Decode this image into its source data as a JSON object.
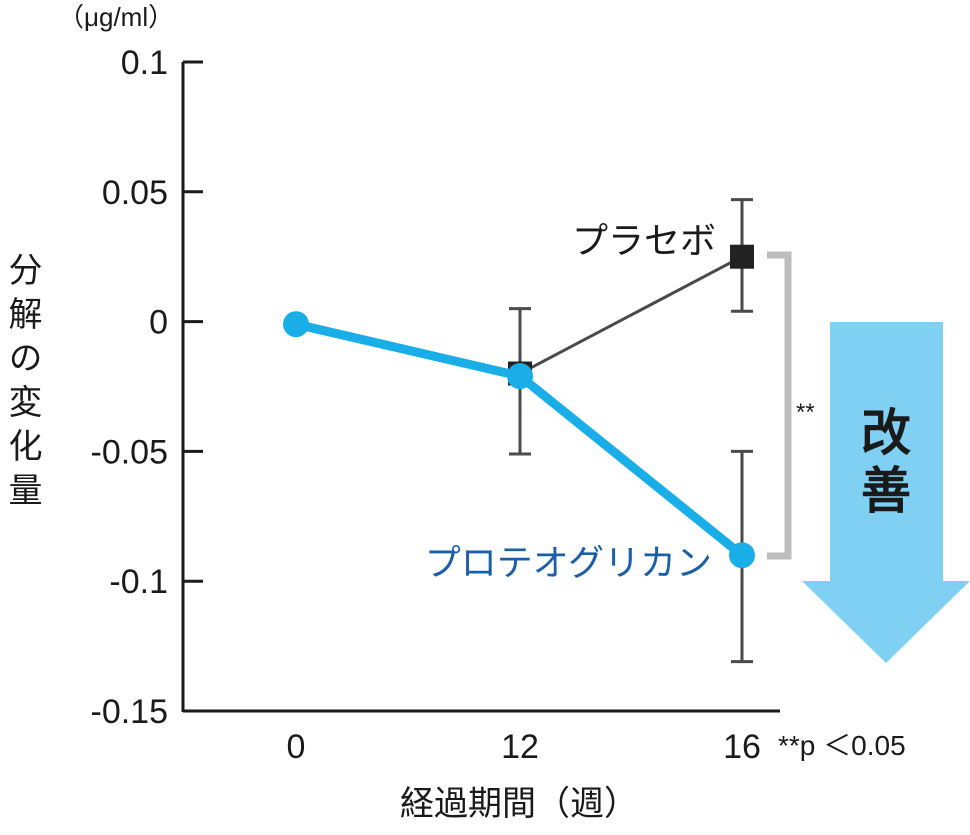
{
  "chart_data": {
    "type": "line",
    "x": [
      0,
      12,
      16
    ],
    "xlabel": "経過期間（週）",
    "ylabel": "分解の変化量",
    "unit": "（μg/ml）",
    "ylim": [
      -0.15,
      0.1
    ],
    "yticks": [
      "0.1",
      "0.05",
      "0",
      "-0.05",
      "-0.1",
      "-0.15"
    ],
    "xticks": [
      "0",
      "12",
      "16"
    ],
    "grid": false,
    "series": [
      {
        "name": "プラセボ",
        "marker": "square",
        "color": "#222222",
        "line_color": "#4a4a4a",
        "values": [
          0,
          -0.02,
          0.025
        ],
        "error_low": [
          null,
          -0.051,
          0.004
        ],
        "error_high": [
          null,
          0.005,
          0.047
        ]
      },
      {
        "name": "プロテオグリカン",
        "marker": "circle",
        "color": "#1aaee8",
        "label_color": "#1a5fa8",
        "values": [
          -0.001,
          -0.021,
          -0.09
        ],
        "error_low": [
          null,
          null,
          -0.131
        ],
        "error_high": [
          null,
          null,
          -0.05
        ]
      }
    ],
    "annotations": {
      "significance_mark": "**",
      "footnote": "**p ＜0.05",
      "improvement_label_1": "改",
      "improvement_label_2": "善"
    },
    "colors": {
      "axis": "#1a1a1a",
      "bracket": "#bdbdbd",
      "arrow": "#7fd0f3",
      "error_bar": "#4a4a4a"
    }
  }
}
